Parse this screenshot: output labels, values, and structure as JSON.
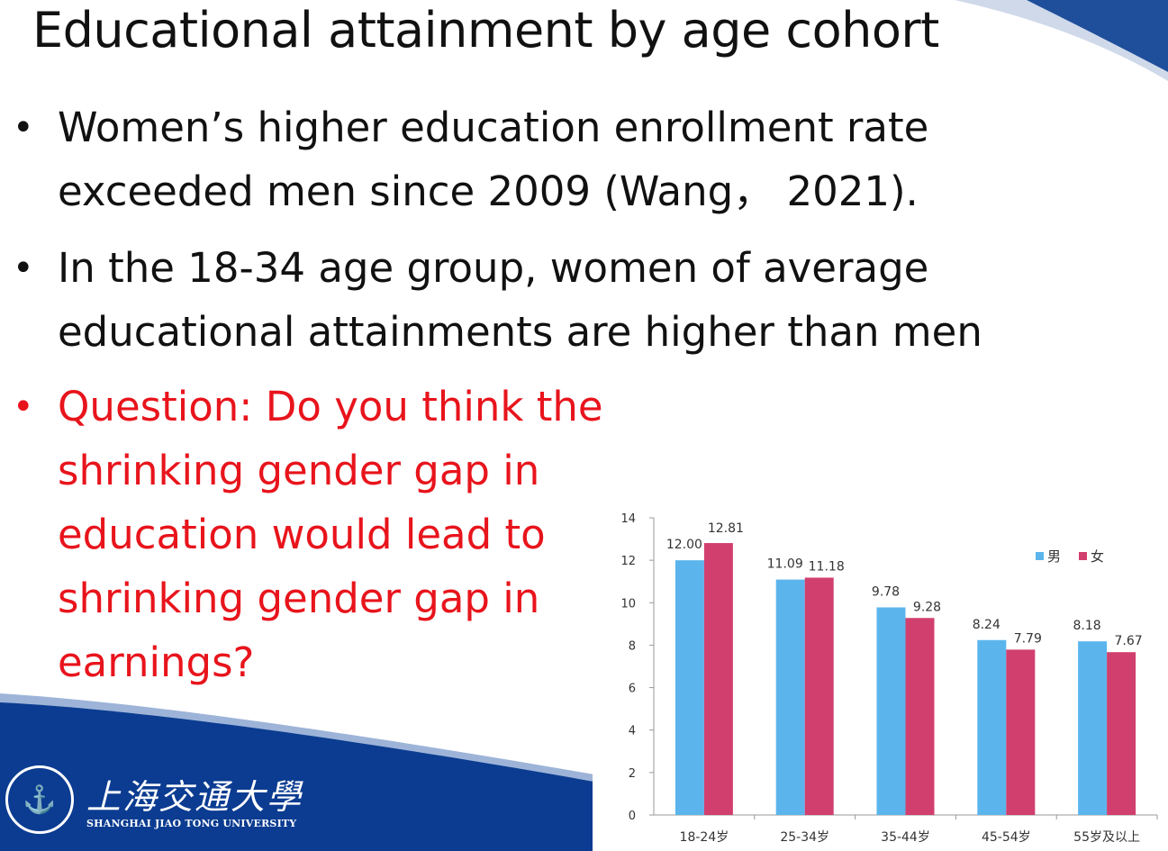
{
  "slide": {
    "title": "Educational attainment by age cohort",
    "bullets": [
      {
        "text": "Women’s higher education enrollment rate exceeded men since 2009 (Wang， 2021)."
      },
      {
        "text": "In the 18-34 age group, women of average educational attainments are higher than men"
      },
      {
        "text": "Question: Do you think the shrinking gender gap in education would lead to shrinking gender gap in earnings?"
      }
    ],
    "bullet_marker": "•",
    "accent_red": "#e8141c",
    "brand_blue": "#0b3c91"
  },
  "logo": {
    "cn": "上海交通大學",
    "en": "SHANGHAI JIAO TONG UNIVERSITY"
  },
  "chart_data": {
    "type": "bar",
    "categories": [
      "18-24岁",
      "25-34岁",
      "35-44岁",
      "45-54岁",
      "55岁及以上"
    ],
    "series": [
      {
        "name": "男",
        "values": [
          12.0,
          11.09,
          9.78,
          8.24,
          8.18
        ],
        "color": "#5bb5ec"
      },
      {
        "name": "女",
        "values": [
          12.81,
          11.18,
          9.28,
          7.79,
          7.67
        ],
        "color": "#d13f6e"
      }
    ],
    "ylim": [
      0,
      14
    ],
    "yticks": [
      0,
      2,
      4,
      6,
      8,
      10,
      12,
      14
    ],
    "legend_position": "top-right",
    "grid": false
  }
}
